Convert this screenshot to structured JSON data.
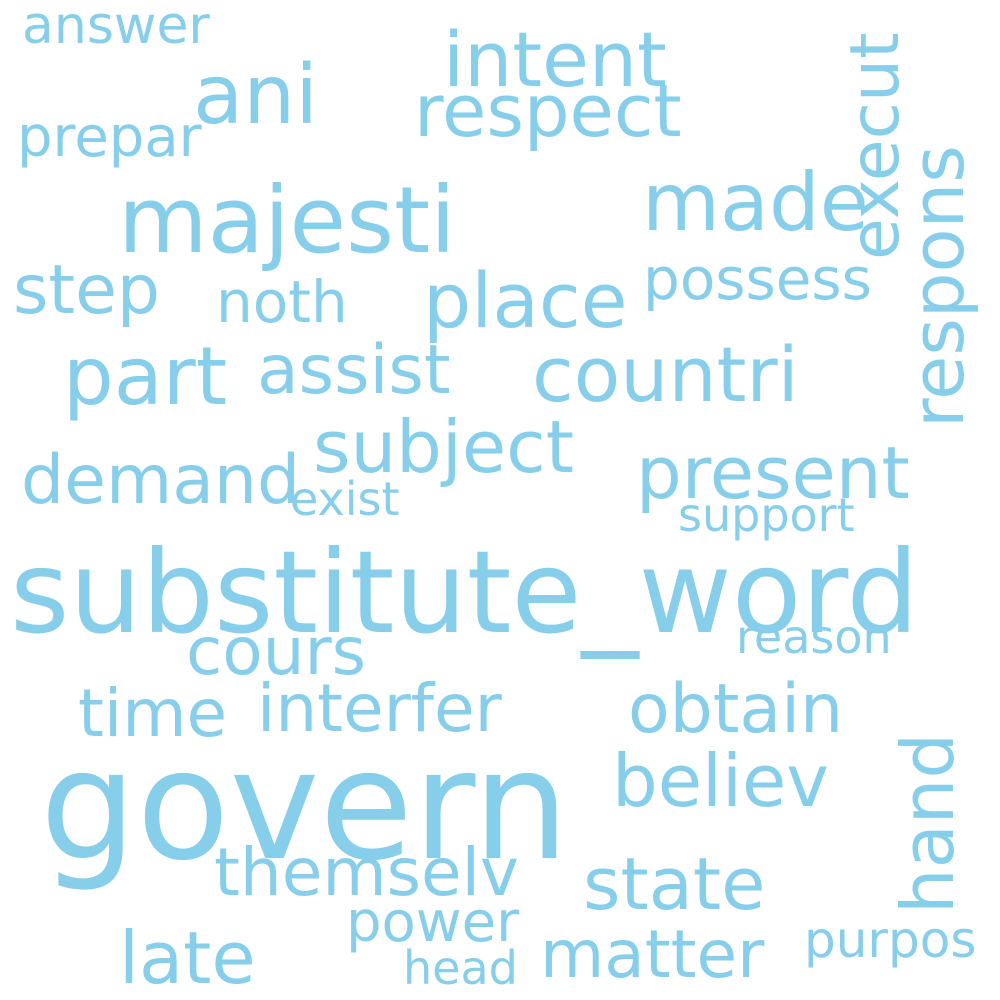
{
  "word_color": "#87ceeb",
  "words": [
    {
      "text": "answer"
    },
    {
      "text": "intent"
    },
    {
      "text": "ani"
    },
    {
      "text": "respect"
    },
    {
      "text": "prepar"
    },
    {
      "text": "execut"
    },
    {
      "text": "majesti"
    },
    {
      "text": "made"
    },
    {
      "text": "respons"
    },
    {
      "text": "step"
    },
    {
      "text": "noth"
    },
    {
      "text": "place"
    },
    {
      "text": "possess"
    },
    {
      "text": "part"
    },
    {
      "text": "assist"
    },
    {
      "text": "countri"
    },
    {
      "text": "subject"
    },
    {
      "text": "demand"
    },
    {
      "text": "present"
    },
    {
      "text": "exist"
    },
    {
      "text": "support"
    },
    {
      "text": "substitute_word"
    },
    {
      "text": "cours"
    },
    {
      "text": "reason"
    },
    {
      "text": "time"
    },
    {
      "text": "interfer"
    },
    {
      "text": "obtain"
    },
    {
      "text": "believ"
    },
    {
      "text": "govern"
    },
    {
      "text": "hand"
    },
    {
      "text": "themselv"
    },
    {
      "text": "state"
    },
    {
      "text": "power"
    },
    {
      "text": "late"
    },
    {
      "text": "matter"
    },
    {
      "text": "purpos"
    },
    {
      "text": "head"
    }
  ]
}
